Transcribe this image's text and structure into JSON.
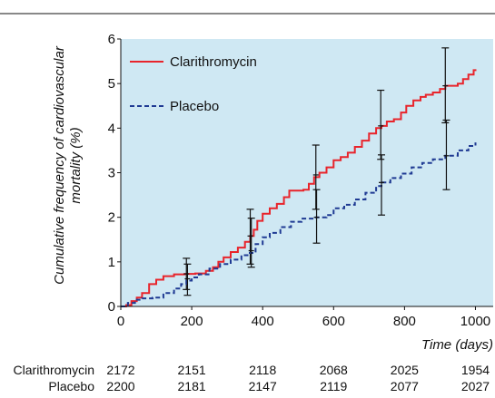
{
  "chart_data": {
    "type": "line",
    "xlabel": "Time (days)",
    "ylabel": "Cumulative frequency of cardiovascular mortality (%)",
    "xlim": [
      0,
      1050
    ],
    "ylim": [
      0,
      6
    ],
    "xticks": [
      0,
      200,
      400,
      600,
      800,
      1000
    ],
    "yticks": [
      0,
      1,
      2,
      3,
      4,
      5,
      6
    ],
    "grid": false,
    "legend": "top-left",
    "background_color": "#cfe8f3",
    "series": [
      {
        "name": "Clarithromycin",
        "color": "#e8242b",
        "style": "solid",
        "points": [
          [
            0,
            0
          ],
          [
            15,
            0.03
          ],
          [
            30,
            0.12
          ],
          [
            45,
            0.2
          ],
          [
            60,
            0.3
          ],
          [
            80,
            0.5
          ],
          [
            100,
            0.6
          ],
          [
            120,
            0.68
          ],
          [
            150,
            0.72
          ],
          [
            180,
            0.73
          ],
          [
            210,
            0.74
          ],
          [
            240,
            0.8
          ],
          [
            260,
            0.88
          ],
          [
            275,
            1.0
          ],
          [
            290,
            1.1
          ],
          [
            310,
            1.22
          ],
          [
            330,
            1.32
          ],
          [
            350,
            1.45
          ],
          [
            365,
            1.58
          ],
          [
            375,
            1.72
          ],
          [
            385,
            1.92
          ],
          [
            400,
            2.08
          ],
          [
            420,
            2.2
          ],
          [
            440,
            2.3
          ],
          [
            460,
            2.45
          ],
          [
            475,
            2.6
          ],
          [
            500,
            2.6
          ],
          [
            515,
            2.62
          ],
          [
            530,
            2.75
          ],
          [
            545,
            2.9
          ],
          [
            560,
            3.0
          ],
          [
            580,
            3.12
          ],
          [
            600,
            3.28
          ],
          [
            620,
            3.35
          ],
          [
            640,
            3.45
          ],
          [
            660,
            3.58
          ],
          [
            680,
            3.72
          ],
          [
            700,
            3.88
          ],
          [
            720,
            4.0
          ],
          [
            735,
            4.05
          ],
          [
            750,
            4.15
          ],
          [
            770,
            4.2
          ],
          [
            790,
            4.35
          ],
          [
            805,
            4.5
          ],
          [
            825,
            4.62
          ],
          [
            845,
            4.7
          ],
          [
            860,
            4.75
          ],
          [
            880,
            4.8
          ],
          [
            900,
            4.88
          ],
          [
            915,
            4.95
          ],
          [
            940,
            4.95
          ],
          [
            950,
            5.0
          ],
          [
            965,
            5.1
          ],
          [
            980,
            5.2
          ],
          [
            995,
            5.3
          ],
          [
            1000,
            5.32
          ]
        ],
        "error_bars": [
          {
            "x": 185,
            "y": 0.73,
            "low": 0.38,
            "high": 1.08
          },
          {
            "x": 365,
            "y": 1.58,
            "low": 0.95,
            "high": 2.18
          },
          {
            "x": 550,
            "y": 2.95,
            "low": 2.18,
            "high": 3.62
          },
          {
            "x": 733,
            "y": 4.05,
            "low": 3.3,
            "high": 4.85
          },
          {
            "x": 915,
            "y": 4.95,
            "low": 4.12,
            "high": 5.8
          }
        ]
      },
      {
        "name": "Placebo",
        "color": "#1f3a93",
        "style": "dashed",
        "points": [
          [
            0,
            0
          ],
          [
            20,
            0.08
          ],
          [
            40,
            0.15
          ],
          [
            60,
            0.18
          ],
          [
            90,
            0.2
          ],
          [
            120,
            0.3
          ],
          [
            150,
            0.4
          ],
          [
            170,
            0.5
          ],
          [
            185,
            0.58
          ],
          [
            200,
            0.65
          ],
          [
            220,
            0.72
          ],
          [
            250,
            0.85
          ],
          [
            280,
            0.95
          ],
          [
            310,
            1.05
          ],
          [
            340,
            1.15
          ],
          [
            360,
            1.2
          ],
          [
            380,
            1.4
          ],
          [
            400,
            1.55
          ],
          [
            420,
            1.65
          ],
          [
            450,
            1.78
          ],
          [
            480,
            1.9
          ],
          [
            510,
            1.97
          ],
          [
            550,
            2.0
          ],
          [
            580,
            2.05
          ],
          [
            600,
            2.2
          ],
          [
            630,
            2.28
          ],
          [
            660,
            2.4
          ],
          [
            690,
            2.55
          ],
          [
            720,
            2.7
          ],
          [
            735,
            2.78
          ],
          [
            760,
            2.88
          ],
          [
            790,
            2.98
          ],
          [
            820,
            3.12
          ],
          [
            850,
            3.22
          ],
          [
            880,
            3.3
          ],
          [
            915,
            3.38
          ],
          [
            950,
            3.5
          ],
          [
            980,
            3.6
          ],
          [
            1000,
            3.68
          ]
        ],
        "error_bars": [
          {
            "x": 188,
            "y": 0.62,
            "low": 0.25,
            "high": 0.95
          },
          {
            "x": 368,
            "y": 1.25,
            "low": 0.88,
            "high": 1.98
          },
          {
            "x": 552,
            "y": 2.0,
            "low": 1.42,
            "high": 2.62
          },
          {
            "x": 735,
            "y": 2.78,
            "low": 2.05,
            "high": 3.4
          },
          {
            "x": 918,
            "y": 3.38,
            "low": 2.62,
            "high": 4.18
          }
        ]
      }
    ],
    "numbers_at_risk": {
      "times": [
        0,
        200,
        400,
        600,
        800,
        1000
      ],
      "rows": [
        {
          "label": "Clarithromycin",
          "values": [
            "2172",
            "2151",
            "2118",
            "2068",
            "2025",
            "1954"
          ]
        },
        {
          "label": "Placebo",
          "values": [
            "2200",
            "2181",
            "2147",
            "2119",
            "2077",
            "2027"
          ]
        }
      ]
    }
  }
}
